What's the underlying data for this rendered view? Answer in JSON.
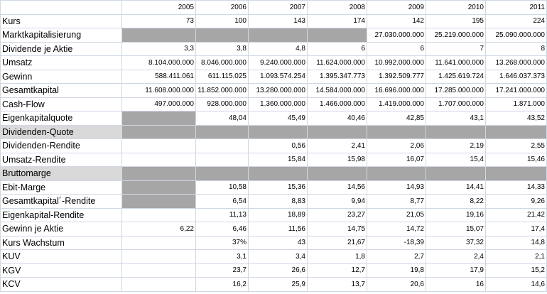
{
  "years": [
    "2005",
    "2006",
    "2007",
    "2008",
    "2009",
    "2010",
    "2011"
  ],
  "rows": [
    {
      "label": "Kurs",
      "values": [
        "73",
        "100",
        "143",
        "174",
        "142",
        "195",
        "224"
      ]
    },
    {
      "label": "Marktkapitalisierung",
      "values": [
        "",
        "",
        "",
        "",
        "27.030.000.000",
        "25.219.000.000",
        "25.090.000.000"
      ]
    },
    {
      "label": "Dividende je Aktie",
      "values": [
        "3,3",
        "3,8",
        "4,8",
        "6",
        "6",
        "7",
        "8"
      ]
    },
    {
      "label": "Umsatz",
      "values": [
        "8.104.000.000",
        "8.046.000.000",
        "9.240.000.000",
        "11.624.000.000",
        "10.992.000.000",
        "11.641.000.000",
        "13.268.000.000"
      ]
    },
    {
      "label": "Gewinn",
      "values": [
        "588.411.061",
        "611.115.025",
        "1.093.574.254",
        "1.395.347.773",
        "1.392.509.777",
        "1.425.619.724",
        "1.646.037.373"
      ]
    },
    {
      "label": "Gesamtkapital",
      "values": [
        "11.608.000.000",
        "11.852.000.000",
        "13.280.000.000",
        "14.584.000.000",
        "16.696.000.000",
        "17.285.000.000",
        "17.241.000.000"
      ]
    },
    {
      "label": "Cash-Flow",
      "values": [
        "497.000.000",
        "928.000.000",
        "1.360.000.000",
        "1.466.000.000",
        "1.419.000.000",
        "1.707.000.000",
        "1.871.000"
      ]
    },
    {
      "label": "Eigenkapitalquote",
      "values": [
        "",
        "48,04",
        "45,49",
        "40,46",
        "42,85",
        "43,1",
        "43,52"
      ]
    },
    {
      "label": "Dividenden-Quote",
      "values": [
        "",
        "",
        "",
        "",
        "",
        "",
        ""
      ]
    },
    {
      "label": "Dividenden-Rendite",
      "values": [
        "",
        "",
        "0,56",
        "2,41",
        "2,06",
        "2,19",
        "2,55"
      ]
    },
    {
      "label": "Umsatz-Rendite",
      "values": [
        "",
        "",
        "15,84",
        "15,98",
        "16,07",
        "15,4",
        "15,46"
      ]
    },
    {
      "label": "Bruttomarge",
      "values": [
        "",
        "",
        "",
        "",
        "",
        "",
        ""
      ]
    },
    {
      "label": "Ebit-Marge",
      "values": [
        "",
        "10,58",
        "15,36",
        "14,56",
        "14,93",
        "14,41",
        "14,33"
      ]
    },
    {
      "label": "Gesamtkapital´-Rendite",
      "values": [
        "",
        "6,54",
        "8,83",
        "9,94",
        "8,77",
        "8,22",
        "9,26"
      ]
    },
    {
      "label": "Eigenkapital-Rendite",
      "values": [
        "",
        "11,13",
        "18,89",
        "23,27",
        "21,05",
        "19,16",
        "21,42"
      ]
    },
    {
      "label": "Gewinn je Aktie",
      "values": [
        "6,22",
        "6,46",
        "11,56",
        "14,75",
        "14,72",
        "15,07",
        "17,4"
      ]
    },
    {
      "label": "Kurs Wachstum",
      "values": [
        "",
        "37%",
        "43",
        "21,67",
        "-18,39",
        "37,32",
        "14,8"
      ]
    },
    {
      "label": "KUV",
      "values": [
        "",
        "3,1",
        "3,4",
        "1,8",
        "2,7",
        "2,4",
        "2,1"
      ]
    },
    {
      "label": "KGV",
      "values": [
        "",
        "23,7",
        "26,6",
        "12,7",
        "19,8",
        "17,9",
        "15,2"
      ]
    },
    {
      "label": "KCV",
      "values": [
        "",
        "16,2",
        "25,9",
        "13,7",
        "20,6",
        "16",
        "14,6"
      ]
    }
  ],
  "gray_cells": [
    [
      1,
      0
    ],
    [
      1,
      1
    ],
    [
      1,
      2
    ],
    [
      1,
      3
    ],
    [
      7,
      0
    ],
    [
      8,
      0
    ],
    [
      8,
      1
    ],
    [
      8,
      2
    ],
    [
      8,
      3
    ],
    [
      8,
      4
    ],
    [
      8,
      5
    ],
    [
      8,
      6
    ],
    [
      11,
      0
    ],
    [
      11,
      1
    ],
    [
      11,
      2
    ],
    [
      11,
      3
    ],
    [
      11,
      4
    ],
    [
      11,
      5
    ],
    [
      11,
      6
    ],
    [
      12,
      0
    ],
    [
      13,
      0
    ]
  ],
  "gray_label_rows": [
    8,
    11
  ],
  "colors": {
    "gray_fill": "#a6a6a6",
    "gridline": "#d0d7e5"
  }
}
